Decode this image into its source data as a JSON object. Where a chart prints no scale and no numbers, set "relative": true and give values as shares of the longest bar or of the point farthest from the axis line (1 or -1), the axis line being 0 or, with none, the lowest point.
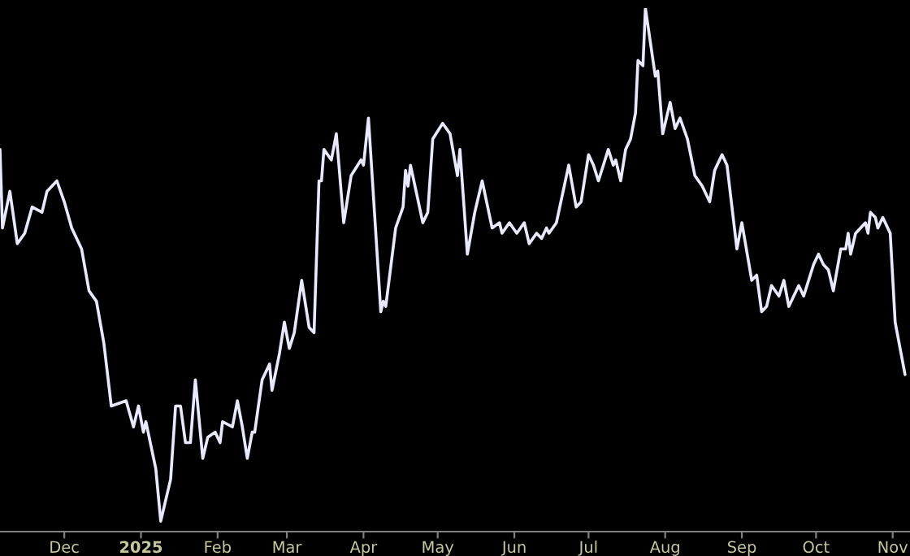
{
  "chart_data": {
    "type": "line",
    "relative": true,
    "grid": false,
    "legend": false,
    "xlim": [
      "2024-11-05",
      "2025-11-08"
    ],
    "xticks": [
      {
        "value": "2024-12-01",
        "label": "Dec"
      },
      {
        "value": "2025-01-01",
        "label": "2025"
      },
      {
        "value": "2025-02-01",
        "label": "Feb"
      },
      {
        "value": "2025-03-01",
        "label": "Mar"
      },
      {
        "value": "2025-04-01",
        "label": "Apr"
      },
      {
        "value": "2025-05-01",
        "label": "May"
      },
      {
        "value": "2025-06-01",
        "label": "Jun"
      },
      {
        "value": "2025-07-01",
        "label": "Jul"
      },
      {
        "value": "2025-08-01",
        "label": "Aug"
      },
      {
        "value": "2025-09-01",
        "label": "Sep"
      },
      {
        "value": "2025-10-01",
        "label": "Oct"
      },
      {
        "value": "2025-11-01",
        "label": "Nov"
      }
    ],
    "series": [
      {
        "color": "#e8e8ff",
        "x": [
          "2024-11-05",
          "2024-11-06",
          "2024-11-09",
          "2024-11-12",
          "2024-11-15",
          "2024-11-18",
          "2024-11-22",
          "2024-11-24",
          "2024-11-28",
          "2024-12-01",
          "2024-12-04",
          "2024-12-08",
          "2024-12-11",
          "2024-12-14",
          "2024-12-17",
          "2024-12-20",
          "2024-12-26",
          "2024-12-29",
          "2024-12-31",
          "2025-01-02",
          "2025-01-03",
          "2025-01-07",
          "2025-01-09",
          "2025-01-11",
          "2025-01-13",
          "2025-01-15",
          "2025-01-17",
          "2025-01-19",
          "2025-01-21",
          "2025-01-23",
          "2025-01-26",
          "2025-01-28",
          "2025-01-31",
          "2025-02-02",
          "2025-02-03",
          "2025-02-07",
          "2025-02-09",
          "2025-02-11",
          "2025-02-13",
          "2025-02-15",
          "2025-02-16",
          "2025-02-19",
          "2025-02-22",
          "2025-02-23",
          "2025-02-26",
          "2025-02-28",
          "2025-03-02",
          "2025-03-04",
          "2025-03-07",
          "2025-03-10",
          "2025-03-12",
          "2025-03-14",
          "2025-03-15",
          "2025-03-16",
          "2025-03-19",
          "2025-03-21",
          "2025-03-24",
          "2025-03-27",
          "2025-03-31",
          "2025-04-01",
          "2025-04-03",
          "2025-04-08",
          "2025-04-09",
          "2025-04-10",
          "2025-04-14",
          "2025-04-17",
          "2025-04-18",
          "2025-04-19",
          "2025-04-20",
          "2025-04-25",
          "2025-04-27",
          "2025-04-29",
          "2025-05-03",
          "2025-05-06",
          "2025-05-09",
          "2025-05-10",
          "2025-05-13",
          "2025-05-16",
          "2025-05-19",
          "2025-05-23",
          "2025-05-26",
          "2025-05-27",
          "2025-05-30",
          "2025-06-02",
          "2025-06-05",
          "2025-06-07",
          "2025-06-10",
          "2025-06-12",
          "2025-06-14",
          "2025-06-15",
          "2025-06-18",
          "2025-06-23",
          "2025-06-26",
          "2025-06-28",
          "2025-07-01",
          "2025-07-03",
          "2025-07-05",
          "2025-07-09",
          "2025-07-11",
          "2025-07-12",
          "2025-07-14",
          "2025-07-16",
          "2025-07-18",
          "2025-07-20",
          "2025-07-21",
          "2025-07-23",
          "2025-07-24",
          "2025-07-28",
          "2025-07-29",
          "2025-07-31",
          "2025-08-03",
          "2025-08-05",
          "2025-08-07",
          "2025-08-10",
          "2025-08-13",
          "2025-08-16",
          "2025-08-19",
          "2025-08-21",
          "2025-08-24",
          "2025-08-26",
          "2025-08-30",
          "2025-09-01",
          "2025-09-05",
          "2025-09-07",
          "2025-09-09",
          "2025-09-11",
          "2025-09-13",
          "2025-09-16",
          "2025-09-18",
          "2025-09-20",
          "2025-09-24",
          "2025-09-26",
          "2025-09-30",
          "2025-10-02",
          "2025-10-04",
          "2025-10-06",
          "2025-10-08",
          "2025-10-11",
          "2025-10-13",
          "2025-10-14",
          "2025-10-15",
          "2025-10-17",
          "2025-10-21",
          "2025-10-22",
          "2025-10-23",
          "2025-10-25",
          "2025-10-26",
          "2025-10-28",
          "2025-10-31",
          "2025-11-02",
          "2025-11-06"
        ],
        "values": [
          0.73,
          0.58,
          0.65,
          0.55,
          0.57,
          0.62,
          0.61,
          0.65,
          0.67,
          0.63,
          0.58,
          0.54,
          0.46,
          0.44,
          0.36,
          0.24,
          0.25,
          0.2,
          0.24,
          0.19,
          0.21,
          0.12,
          0.02,
          0.06,
          0.1,
          0.24,
          0.24,
          0.17,
          0.17,
          0.29,
          0.14,
          0.18,
          0.19,
          0.17,
          0.21,
          0.2,
          0.25,
          0.2,
          0.14,
          0.19,
          0.19,
          0.29,
          0.32,
          0.27,
          0.34,
          0.4,
          0.35,
          0.38,
          0.48,
          0.39,
          0.38,
          0.67,
          0.67,
          0.73,
          0.71,
          0.76,
          0.59,
          0.68,
          0.71,
          0.7,
          0.79,
          0.42,
          0.44,
          0.43,
          0.58,
          0.62,
          0.69,
          0.66,
          0.7,
          0.59,
          0.61,
          0.75,
          0.78,
          0.76,
          0.68,
          0.73,
          0.53,
          0.61,
          0.67,
          0.58,
          0.59,
          0.57,
          0.59,
          0.57,
          0.59,
          0.55,
          0.57,
          0.56,
          0.58,
          0.57,
          0.59,
          0.7,
          0.62,
          0.63,
          0.72,
          0.7,
          0.67,
          0.73,
          0.7,
          0.71,
          0.67,
          0.73,
          0.75,
          0.8,
          0.9,
          0.89,
          1.0,
          0.87,
          0.88,
          0.76,
          0.82,
          0.77,
          0.79,
          0.75,
          0.68,
          0.66,
          0.63,
          0.69,
          0.72,
          0.7,
          0.54,
          0.59,
          0.48,
          0.49,
          0.42,
          0.43,
          0.47,
          0.45,
          0.48,
          0.43,
          0.47,
          0.45,
          0.51,
          0.53,
          0.51,
          0.5,
          0.46,
          0.54,
          0.54,
          0.57,
          0.53,
          0.57,
          0.59,
          0.57,
          0.61,
          0.6,
          0.58,
          0.6,
          0.57,
          0.4,
          0.3
        ]
      }
    ]
  }
}
